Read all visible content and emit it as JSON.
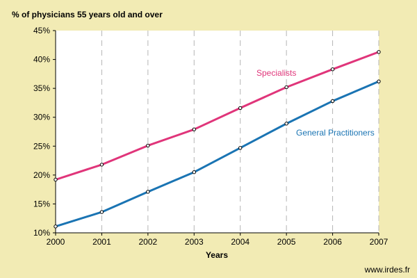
{
  "chart_data": {
    "type": "line",
    "title": "% of physicians 55 years old and over",
    "xlabel": "Years",
    "ylabel": "",
    "x": [
      "2000",
      "2001",
      "2002",
      "2003",
      "2004",
      "2005",
      "2006",
      "2007"
    ],
    "yticks": [
      "10%",
      "15%",
      "20%",
      "25%",
      "30%",
      "35%",
      "40%",
      "45%"
    ],
    "ylim": [
      10,
      45
    ],
    "grid": "vertical dashed",
    "series": [
      {
        "name": "Specialists",
        "color": "#e0357a",
        "values": [
          19.2,
          21.8,
          25.1,
          27.9,
          31.6,
          35.2,
          38.3,
          41.3
        ]
      },
      {
        "name": "General Practitioners",
        "color": "#1a74b3",
        "values": [
          11.1,
          13.6,
          17.1,
          20.5,
          24.7,
          28.9,
          32.8,
          36.2
        ]
      }
    ]
  },
  "footer": {
    "source": "www.irdes.fr"
  }
}
